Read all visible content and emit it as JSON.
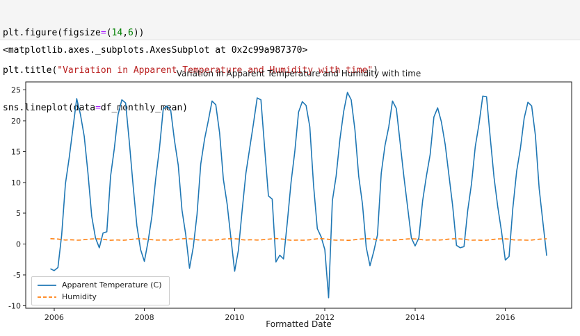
{
  "code_cell": {
    "line1": [
      "plt.figure(figsize",
      "=",
      "(",
      "14",
      ",",
      "6",
      "))"
    ],
    "line2": [
      "plt.title(",
      "\"Variation in Apparent Temperature and Humidity with time\"",
      ")"
    ],
    "line3": [
      "sns.lineplot(data",
      "=",
      "df_monthly_mean)"
    ]
  },
  "output": {
    "text": "<matplotlib.axes._subplots.AxesSubplot at 0x2c99a987370>"
  },
  "chart_data": {
    "type": "line",
    "title": "Variation in Apparent Temperature and Humidity with time",
    "xlabel": "Formatted Date",
    "ylabel": "",
    "grid": false,
    "legend_position": "lower left",
    "x_start": 2005.9167,
    "x_step": 0.0833333,
    "xlim": [
      2005.37,
      2017.47
    ],
    "ylim": [
      -10.4,
      26.3
    ],
    "xticks": [
      2006,
      2008,
      2010,
      2012,
      2014,
      2016
    ],
    "yticks": [
      -10,
      -5,
      0,
      5,
      10,
      15,
      20,
      25
    ],
    "series": [
      {
        "name": "Apparent Temperature (C)",
        "color": "#1f77b4",
        "style": "solid",
        "values": [
          -4.0,
          -4.3,
          -3.8,
          1.5,
          9.8,
          14.0,
          18.8,
          23.6,
          21.0,
          17.5,
          11.5,
          4.5,
          1.0,
          -0.6,
          1.8,
          2.0,
          11.0,
          15.5,
          21.0,
          23.4,
          22.9,
          16.5,
          9.5,
          3.0,
          -0.9,
          -2.8,
          0.5,
          4.5,
          10.5,
          15.5,
          21.9,
          22.4,
          21.7,
          16.8,
          12.8,
          5.5,
          1.5,
          -3.9,
          -0.5,
          4.8,
          13.0,
          17.0,
          20.0,
          23.2,
          22.6,
          18.0,
          10.5,
          6.5,
          1.0,
          -4.4,
          -1.0,
          5.5,
          11.5,
          15.5,
          19.5,
          23.7,
          23.4,
          15.5,
          7.8,
          7.3,
          -2.9,
          -1.8,
          -2.4,
          3.5,
          10.0,
          15.0,
          21.4,
          23.1,
          22.5,
          19.0,
          9.5,
          2.5,
          1.2,
          -0.9,
          -8.7,
          7.0,
          11.0,
          17.0,
          21.5,
          24.6,
          23.4,
          18.5,
          11.0,
          6.5,
          -0.5,
          -3.5,
          -1.2,
          1.5,
          11.5,
          16.0,
          19.0,
          23.2,
          22.0,
          16.5,
          11.0,
          6.0,
          1.0,
          -0.3,
          1.0,
          7.0,
          11.0,
          14.5,
          20.6,
          22.1,
          19.8,
          16.2,
          11.2,
          6.2,
          -0.2,
          -0.6,
          -0.4,
          5.5,
          9.8,
          15.8,
          19.5,
          24.0,
          23.9,
          17.2,
          10.8,
          6.0,
          2.0,
          -2.6,
          -2.0,
          5.8,
          11.8,
          15.5,
          20.4,
          23.0,
          22.4,
          17.6,
          9.0,
          3.5,
          -1.9
        ]
      },
      {
        "name": "Humidity",
        "color": "#ff7f0e",
        "style": "dashed",
        "dash": "6,3.5",
        "values": [
          0.88,
          0.85,
          0.82,
          0.72,
          0.66,
          0.7,
          0.68,
          0.63,
          0.66,
          0.72,
          0.78,
          0.84,
          0.87,
          0.83,
          0.79,
          0.7,
          0.62,
          0.65,
          0.67,
          0.62,
          0.65,
          0.73,
          0.79,
          0.85,
          0.88,
          0.84,
          0.78,
          0.71,
          0.65,
          0.66,
          0.68,
          0.64,
          0.65,
          0.74,
          0.8,
          0.86,
          0.89,
          0.86,
          0.81,
          0.7,
          0.64,
          0.67,
          0.66,
          0.63,
          0.67,
          0.72,
          0.81,
          0.85,
          0.88,
          0.87,
          0.82,
          0.71,
          0.65,
          0.7,
          0.69,
          0.65,
          0.68,
          0.75,
          0.8,
          0.86,
          0.9,
          0.85,
          0.8,
          0.69,
          0.62,
          0.64,
          0.66,
          0.63,
          0.64,
          0.7,
          0.79,
          0.86,
          0.89,
          0.84,
          0.78,
          0.68,
          0.63,
          0.67,
          0.65,
          0.61,
          0.63,
          0.71,
          0.8,
          0.85,
          0.87,
          0.86,
          0.81,
          0.72,
          0.64,
          0.66,
          0.68,
          0.62,
          0.64,
          0.72,
          0.78,
          0.84,
          0.86,
          0.83,
          0.8,
          0.7,
          0.66,
          0.69,
          0.67,
          0.64,
          0.68,
          0.74,
          0.81,
          0.85,
          0.88,
          0.84,
          0.79,
          0.69,
          0.63,
          0.65,
          0.64,
          0.61,
          0.63,
          0.7,
          0.78,
          0.83,
          0.86,
          0.85,
          0.81,
          0.7,
          0.65,
          0.68,
          0.66,
          0.63,
          0.65,
          0.72,
          0.79,
          0.84,
          0.87
        ]
      }
    ]
  }
}
